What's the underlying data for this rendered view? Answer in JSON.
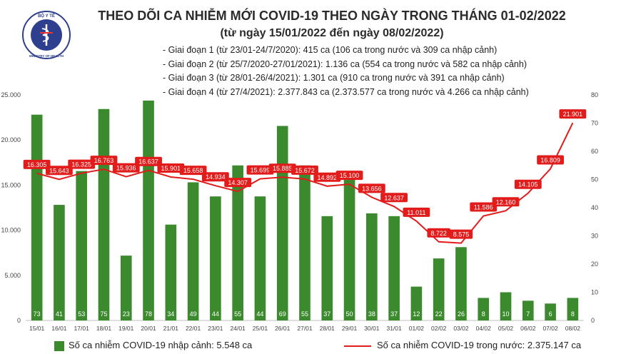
{
  "logo": {
    "top_text": "BỘ Y TẾ",
    "bottom_text": "MINISTRY OF HEALTH",
    "color": "#2e3f8f"
  },
  "title": "THEO DÕI CA NHIỄM MỚI COVID-19 THEO NGÀY TRONG THÁNG 01-02/2022",
  "subtitle": "(từ ngày 15/01/2022 đến ngày 08/02/2022)",
  "notes": [
    "- Giai đoạn 1 (từ 23/01-24/7/2020): 415 ca (106 ca trong nước và 309 ca nhập cảnh)",
    "- Giai đoạn 2 (từ 25/7/2020-27/01/2021): 1.136 ca (554 ca trong nước và 582 ca nhập cảnh)",
    "- Giai đoạn 3 (từ 28/01-26/4/2021): 1.301 ca (910 ca trong nước và 391 ca nhập cảnh)",
    "- Giai đoạn 4 (từ 27/4/2021): 2.377.843 ca (2.373.577 ca trong nước và 4.266 ca nhập cảnh)"
  ],
  "chart_data": {
    "type": "bar",
    "categories": [
      "15/01",
      "16/01",
      "17/01",
      "18/01",
      "19/01",
      "20/01",
      "21/01",
      "22/01",
      "23/01",
      "24/01",
      "25/01",
      "26/01",
      "27/01",
      "28/01",
      "29/01",
      "30/01",
      "31/01",
      "01/02",
      "02/02",
      "03/02",
      "04/02",
      "05/02",
      "06/02",
      "07/02",
      "08/02"
    ],
    "left_axis": {
      "ylim": [
        0,
        25000
      ],
      "ticks": [
        "0",
        "5.000",
        "10.000",
        "15.000",
        "20.000",
        "25.000"
      ],
      "tick_values": [
        0,
        5000,
        10000,
        15000,
        20000,
        25000
      ]
    },
    "right_axis": {
      "ylim": [
        0,
        80
      ],
      "ticks": [
        "0",
        "10",
        "20",
        "30",
        "40",
        "50",
        "60",
        "70",
        "80"
      ],
      "tick_values": [
        0,
        10,
        20,
        30,
        40,
        50,
        60,
        70,
        80
      ]
    },
    "series": [
      {
        "name": "Số ca nhiễm COVID-19 nhập cảnh: 5.548 ca",
        "type": "bar",
        "axis": "right",
        "color": "#3b8a2e",
        "values": [
          73,
          41,
          53,
          75,
          23,
          78,
          34,
          49,
          44,
          55,
          44,
          69,
          55,
          37,
          50,
          38,
          37,
          12,
          22,
          26,
          8,
          10,
          7,
          6,
          8
        ],
        "labels": [
          "73",
          "41",
          "53",
          "75",
          "23",
          "78",
          "34",
          "49",
          "44",
          "55",
          "44",
          "69",
          "55",
          "37",
          "50",
          "38",
          "37",
          "12",
          "22",
          "26",
          "8",
          "10",
          "7",
          "6",
          "8"
        ]
      },
      {
        "name": "Số ca nhiễm COVID-19 trong nước: 2.375.147 ca",
        "type": "line",
        "axis": "left",
        "color": "#e21b1b",
        "values": [
          16305,
          15643,
          16325,
          16763,
          15936,
          16637,
          15901,
          15658,
          14934,
          14307,
          15699,
          15885,
          15672,
          14892,
          15100,
          13656,
          12637,
          11011,
          8722,
          8575,
          11586,
          12160,
          14105,
          16809,
          21901
        ],
        "labels": [
          "16.305",
          "15.643",
          "16.325",
          "16.763",
          "15.936",
          "16.637",
          "15.901",
          "15.658",
          "14.934",
          "14.307",
          "15.699",
          "15.885",
          "15.672",
          "14.892",
          "15.100",
          "13.656",
          "12.637",
          "11.011",
          "8.722",
          "8.575",
          "11.586",
          "12.160",
          "14.105",
          "16.809",
          "21.901"
        ]
      }
    ],
    "grid": false,
    "legend": "bottom"
  }
}
